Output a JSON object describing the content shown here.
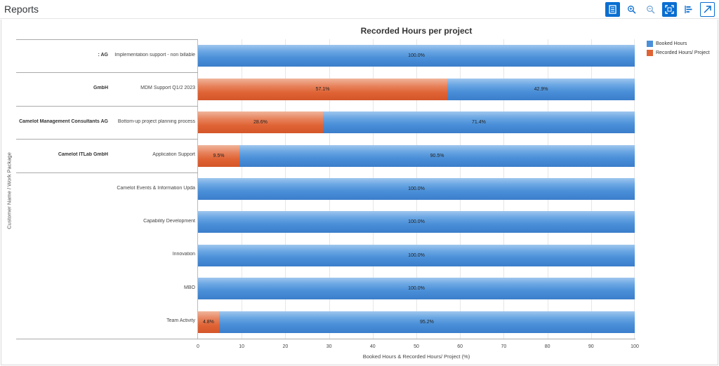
{
  "app": {
    "title": "Reports"
  },
  "toolbar": {
    "buttons": [
      {
        "name": "table-view-button",
        "icon": "table-icon",
        "active": true,
        "outlined": false
      },
      {
        "name": "zoom-in-button",
        "icon": "zoom-in-icon",
        "active": false,
        "outlined": false
      },
      {
        "name": "zoom-out-button",
        "icon": "zoom-out-icon",
        "active": false,
        "outlined": false
      },
      {
        "name": "fullscreen-button",
        "icon": "fullscreen-icon",
        "active": true,
        "outlined": false
      },
      {
        "name": "legend-toggle-button",
        "icon": "legend-icon",
        "active": false,
        "outlined": false
      },
      {
        "name": "open-external-button",
        "icon": "open-external-icon",
        "active": false,
        "outlined": true
      }
    ]
  },
  "colors": {
    "booked": "#4a8fd8",
    "recorded": "#df6334",
    "accent": "#0a6ed1"
  },
  "chart_data": {
    "type": "bar",
    "orientation": "horizontal",
    "stacked": "percent",
    "title": "Recorded Hours per project",
    "xlabel": "Booked Hours & Recorded Hours/ Project (%)",
    "ylabel": "Customer Name / Work Package",
    "xlim": [
      0,
      100
    ],
    "xticks": [
      "0",
      "10",
      "20",
      "30",
      "40",
      "50",
      "60",
      "70",
      "80",
      "90",
      "100"
    ],
    "grid": true,
    "legend_position": "top-right",
    "categories": [
      "Implementation support - non billable",
      "MDM Support Q1/2 2023",
      "Bottom-up project planning process",
      "Application Support",
      "Camelot Events & Information Upda",
      "Capability Development",
      "Innovation",
      "MBO",
      "Team Activity"
    ],
    "customer_groups": [
      {
        "label": ": AG",
        "rows": [
          0
        ]
      },
      {
        "label": "GmbH",
        "rows": [
          1
        ]
      },
      {
        "label": "Camelot Management Consultants AG",
        "rows": [
          2
        ]
      },
      {
        "label": "Camelot ITLab GmbH",
        "rows": [
          3
        ]
      },
      {
        "label": "",
        "rows": [
          4,
          5,
          6,
          7,
          8
        ]
      }
    ],
    "series": [
      {
        "name": "Recorded Hours/ Project",
        "color": "#df6334",
        "values": [
          0,
          57.1,
          28.6,
          9.5,
          0,
          0,
          0,
          0,
          4.8
        ]
      },
      {
        "name": "Booked Hours",
        "color": "#4a8fd8",
        "values": [
          100,
          42.9,
          71.4,
          90.5,
          100,
          100,
          100,
          100,
          95.2
        ]
      }
    ],
    "data_labels": [
      [
        "",
        "57.1%",
        "28.6%",
        "9.5%",
        "",
        "",
        "",
        "",
        "4.8%"
      ],
      [
        "100.0%",
        "42.9%",
        "71.4%",
        "90.5%",
        "100.0%",
        "100.0%",
        "100.0%",
        "100.0%",
        "95.2%"
      ]
    ],
    "legend": [
      {
        "label": "Booked Hours",
        "color": "#4a8fd8"
      },
      {
        "label": "Recorded Hours/ Project",
        "color": "#df6334"
      }
    ]
  }
}
